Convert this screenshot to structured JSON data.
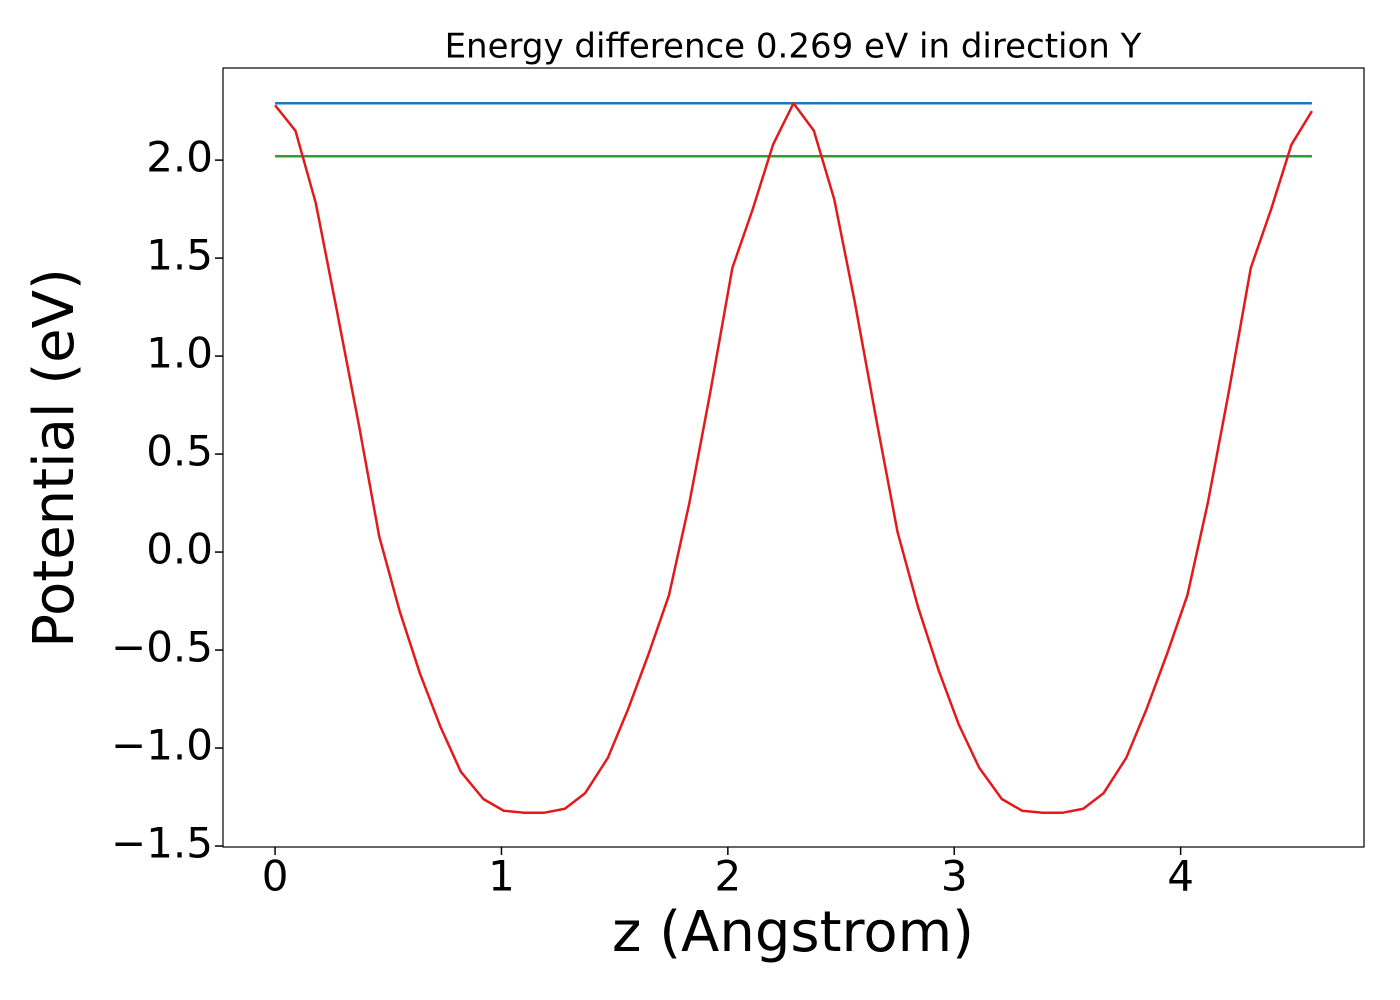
{
  "chart_data": {
    "type": "line",
    "title": "Energy difference 0.269 eV in direction Y",
    "xlabel": "z (Angstrom)",
    "ylabel": "Potential (eV)",
    "xlim": [
      -0.23,
      4.81
    ],
    "ylim": [
      -1.505,
      2.47
    ],
    "xticks": [
      0,
      1,
      2,
      3,
      4
    ],
    "yticks": [
      {
        "value": -1.5,
        "label": "−1.5"
      },
      {
        "value": -1.0,
        "label": "−1.0"
      },
      {
        "value": -0.5,
        "label": "−0.5"
      },
      {
        "value": 0.0,
        "label": "0.0"
      },
      {
        "value": 0.5,
        "label": "0.5"
      },
      {
        "value": 1.0,
        "label": "1.0"
      },
      {
        "value": 1.5,
        "label": "1.5"
      },
      {
        "value": 2.0,
        "label": "2.0"
      }
    ],
    "series": [
      {
        "color": "#1f77b4",
        "x": [
          0,
          4.58
        ],
        "values": [
          2.29,
          2.29
        ]
      },
      {
        "color": "#2ca02c",
        "x": [
          0,
          4.58
        ],
        "values": [
          2.02,
          2.02
        ]
      },
      {
        "color": "#e31a1c",
        "x": [
          0,
          0.09,
          0.18,
          0.27,
          0.37,
          0.46,
          0.55,
          0.64,
          0.73,
          0.82,
          0.92,
          1.01,
          1.1,
          1.19,
          1.28,
          1.37,
          1.47,
          1.56,
          1.65,
          1.74,
          1.83,
          1.92,
          2.02,
          2.11,
          2.2,
          2.29,
          2.38,
          2.47,
          2.56,
          2.66,
          2.75,
          2.84,
          2.93,
          3.02,
          3.11,
          3.21,
          3.3,
          3.39,
          3.48,
          3.57,
          3.66,
          3.76,
          3.85,
          3.94,
          4.03,
          4.12,
          4.21,
          4.31,
          4.4,
          4.49,
          4.58
        ],
        "values": [
          2.28,
          2.15,
          1.78,
          1.25,
          0.65,
          0.08,
          -0.3,
          -0.62,
          -0.89,
          -1.12,
          -1.26,
          -1.32,
          -1.33,
          -1.33,
          -1.31,
          -1.23,
          -1.05,
          -0.8,
          -0.52,
          -0.22,
          0.25,
          0.8,
          1.45,
          1.75,
          2.08,
          2.29,
          2.15,
          1.8,
          1.28,
          0.65,
          0.1,
          -0.28,
          -0.6,
          -0.88,
          -1.1,
          -1.26,
          -1.32,
          -1.33,
          -1.33,
          -1.31,
          -1.23,
          -1.05,
          -0.8,
          -0.52,
          -0.22,
          0.25,
          0.8,
          1.45,
          1.75,
          2.08,
          2.25
        ]
      }
    ]
  }
}
